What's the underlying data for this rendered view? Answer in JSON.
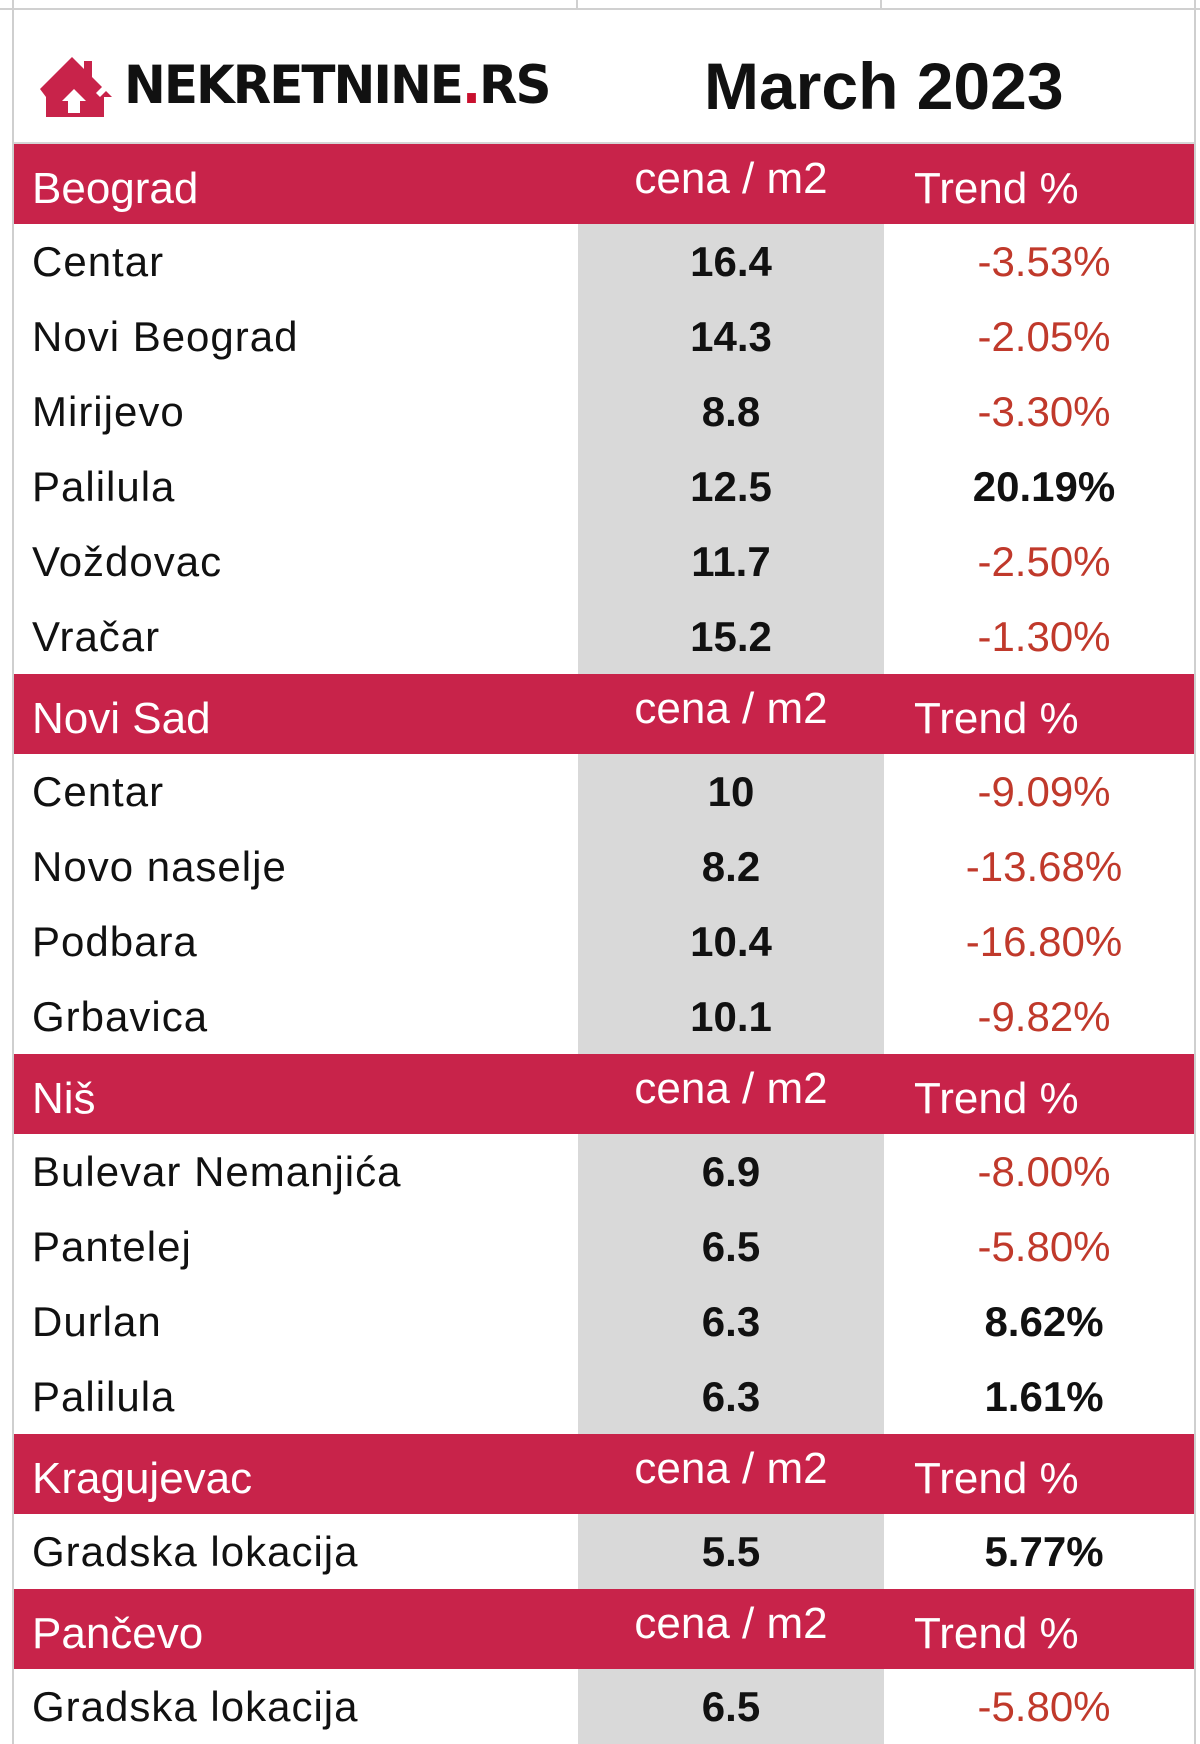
{
  "logo": {
    "text_main": "NEKRETNINE",
    "text_dot": ".",
    "text_tld": "RS"
  },
  "period": "March 2023",
  "colors": {
    "header_bg": "#c8234a",
    "negative": "#c0392b",
    "positive": "#111111",
    "price_col_bg": "#d9d9d9"
  },
  "sections": [
    {
      "city": "Beograd",
      "price_header": "cena / m2",
      "trend_header": "Trend %",
      "rows": [
        {
          "name": "Centar",
          "price": "16.4",
          "trend": "-3.53%",
          "direction": "down"
        },
        {
          "name": "Novi Beograd",
          "price": "14.3",
          "trend": "-2.05%",
          "direction": "down"
        },
        {
          "name": "Mirijevo",
          "price": "8.8",
          "trend": "-3.30%",
          "direction": "down"
        },
        {
          "name": "Palilula",
          "price": "12.5",
          "trend": "20.19%",
          "direction": "up"
        },
        {
          "name": "Voždovac",
          "price": "11.7",
          "trend": "-2.50%",
          "direction": "down"
        },
        {
          "name": "Vračar",
          "price": "15.2",
          "trend": "-1.30%",
          "direction": "down"
        }
      ]
    },
    {
      "city": "Novi Sad",
      "price_header": "cena / m2",
      "trend_header": "Trend %",
      "rows": [
        {
          "name": "Centar",
          "price": "10",
          "trend": "-9.09%",
          "direction": "down"
        },
        {
          "name": "Novo naselje",
          "price": "8.2",
          "trend": "-13.68%",
          "direction": "down"
        },
        {
          "name": "Podbara",
          "price": "10.4",
          "trend": "-16.80%",
          "direction": "down"
        },
        {
          "name": "Grbavica",
          "price": "10.1",
          "trend": "-9.82%",
          "direction": "down"
        }
      ]
    },
    {
      "city": "Niš",
      "price_header": "cena / m2",
      "trend_header": "Trend %",
      "rows": [
        {
          "name": "Bulevar Nemanjića",
          "price": "6.9",
          "trend": "-8.00%",
          "direction": "down"
        },
        {
          "name": "Pantelej",
          "price": "6.5",
          "trend": "-5.80%",
          "direction": "down"
        },
        {
          "name": "Durlan",
          "price": "6.3",
          "trend": "8.62%",
          "direction": "up"
        },
        {
          "name": "Palilula",
          "price": "6.3",
          "trend": "1.61%",
          "direction": "up"
        }
      ]
    },
    {
      "city": "Kragujevac",
      "price_header": "cena / m2",
      "trend_header": "Trend %",
      "rows": [
        {
          "name": "Gradska lokacija",
          "price": "5.5",
          "trend": "5.77%",
          "direction": "up"
        }
      ]
    },
    {
      "city": "Pančevo",
      "price_header": "cena / m2",
      "trend_header": "Trend %",
      "rows": [
        {
          "name": "Gradska lokacija",
          "price": "6.5",
          "trend": "-5.80%",
          "direction": "down"
        }
      ]
    }
  ]
}
